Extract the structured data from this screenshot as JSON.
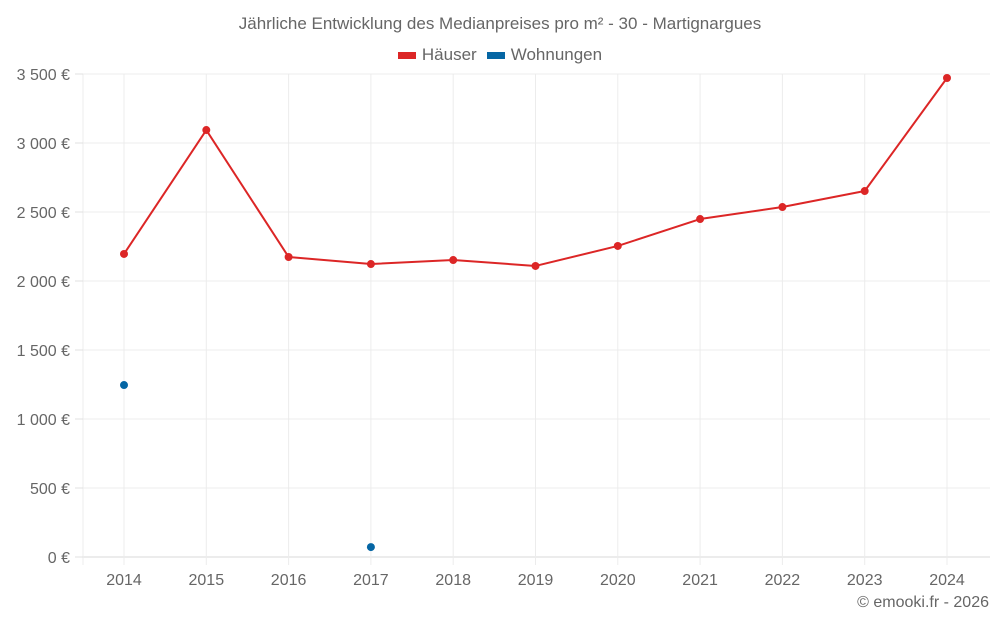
{
  "chart_data": {
    "type": "line",
    "title": "Jährliche Entwicklung des Medianpreises pro m² - 30 - Martignargues",
    "xlabel": "",
    "ylabel": "",
    "categories": [
      "2014",
      "2015",
      "2016",
      "2017",
      "2018",
      "2019",
      "2020",
      "2021",
      "2022",
      "2023",
      "2024"
    ],
    "series": [
      {
        "name": "Häuser",
        "color": "#dc2626",
        "values": [
          2196,
          3094,
          2174,
          2123,
          2152,
          2109,
          2254,
          2449,
          2536,
          2652,
          3471
        ]
      },
      {
        "name": "Wohnungen",
        "color": "#0566a4",
        "values": [
          1246,
          null,
          null,
          72,
          null,
          null,
          null,
          null,
          null,
          null,
          null
        ]
      }
    ],
    "ylim": [
      0,
      3500
    ],
    "yticks": [
      0,
      500,
      1000,
      1500,
      2000,
      2500,
      3000,
      3500
    ],
    "ytick_labels": [
      "0 €",
      "500 €",
      "1 000 €",
      "1 500 €",
      "2 000 €",
      "2 500 €",
      "3 000 €",
      "3 500 €"
    ],
    "grid": true,
    "legend_position": "top"
  },
  "legend": {
    "items": [
      {
        "label": "Häuser",
        "color": "#dc2626"
      },
      {
        "label": "Wohnungen",
        "color": "#0566a4"
      }
    ]
  },
  "credit": "© emooki.fr - 2026"
}
